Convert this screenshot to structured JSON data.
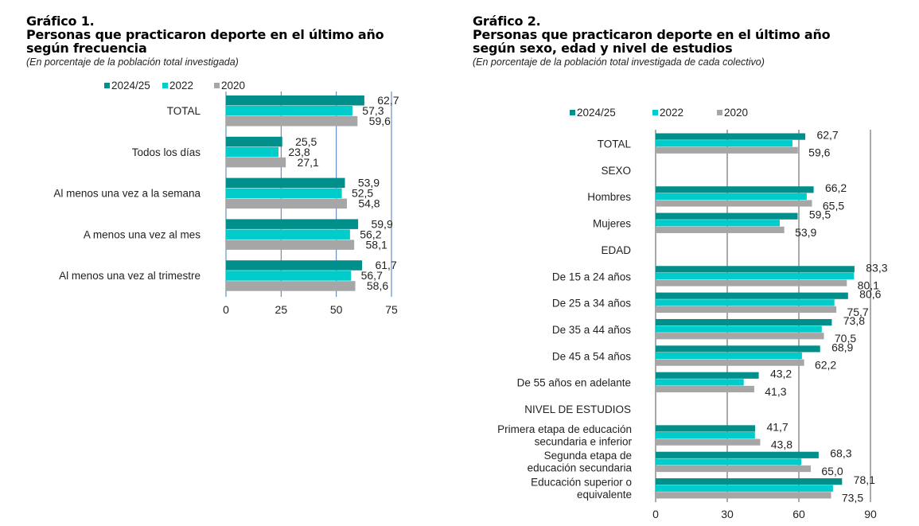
{
  "colors": {
    "s2024": "#008f8a",
    "s2022": "#00cccc",
    "s2020": "#a6a6a6",
    "grid1": "#4a78c2",
    "grid2": "#555555"
  },
  "chart_data": [
    {
      "type": "bar",
      "orientation": "horizontal",
      "title_number": "Gráfico 1.",
      "title": "Personas que practicaron deporte en el último año según frecuencia",
      "title_lines": [
        "Personas que practicaron deporte en el último año",
        "según frecuencia"
      ],
      "subtitle": "(En porcentaje de la población total investigada)",
      "xlabel": "",
      "ylabel": "",
      "xlim": [
        0,
        75
      ],
      "ticks": [
        0,
        25,
        50,
        75
      ],
      "grid": true,
      "legend_position": "top",
      "categories": [
        "TOTAL",
        "Todos los días",
        "Al menos una vez a la semana",
        "A menos una vez al mes",
        "Al menos una vez al trimestre"
      ],
      "series": [
        {
          "name": "2024/25",
          "values": [
            62.7,
            25.5,
            53.9,
            59.9,
            61.7
          ],
          "labels": [
            "62,7",
            "25,5",
            "53,9",
            "59,9",
            "61,7"
          ]
        },
        {
          "name": "2022",
          "values": [
            57.3,
            23.8,
            52.5,
            56.2,
            56.7
          ],
          "labels": [
            "57,3",
            "23,8",
            "52,5",
            "56,2",
            "56,7"
          ]
        },
        {
          "name": "2020",
          "values": [
            59.6,
            27.1,
            54.8,
            58.1,
            58.6
          ],
          "labels": [
            "59,6",
            "27,1",
            "54,8",
            "58,1",
            "58,6"
          ]
        }
      ]
    },
    {
      "type": "bar",
      "orientation": "horizontal",
      "title_number": "Gráfico 2.",
      "title": "Personas que practicaron deporte en el último año según sexo, edad y nivel de estudios",
      "title_lines": [
        "Personas que practicaron deporte en el último año",
        "según sexo, edad y nivel de estudios"
      ],
      "subtitle": "(En porcentaje de la población total investigada de cada colectivo)",
      "xlabel": "",
      "ylabel": "",
      "xlim": [
        0,
        90
      ],
      "ticks": [
        0,
        30,
        60,
        90
      ],
      "grid": true,
      "legend_position": "top",
      "categories": [
        {
          "label": [
            "TOTAL"
          ],
          "header": false
        },
        {
          "label": [
            "SEXO"
          ],
          "header": true
        },
        {
          "label": [
            "Hombres"
          ],
          "header": false
        },
        {
          "label": [
            "Mujeres"
          ],
          "header": false
        },
        {
          "label": [
            "EDAD"
          ],
          "header": true
        },
        {
          "label": [
            "De 15 a 24 años"
          ],
          "header": false
        },
        {
          "label": [
            "De 25 a 34 años"
          ],
          "header": false
        },
        {
          "label": [
            "De 35 a 44 años"
          ],
          "header": false
        },
        {
          "label": [
            "De 45 a 54 años"
          ],
          "header": false
        },
        {
          "label": [
            "De 55 años en adelante"
          ],
          "header": false
        },
        {
          "label": [
            "NIVEL DE ESTUDIOS"
          ],
          "header": true
        },
        {
          "label": [
            "Primera etapa de educación",
            "secundaria e inferior"
          ],
          "header": false
        },
        {
          "label": [
            "Segunda etapa de",
            "educación secundaria"
          ],
          "header": false
        },
        {
          "label": [
            "Educación superior o",
            "equivalente"
          ],
          "header": false
        }
      ],
      "series": [
        {
          "name": "2024/25",
          "values": [
            62.7,
            null,
            66.2,
            59.5,
            null,
            83.3,
            80.6,
            73.8,
            68.9,
            43.2,
            null,
            41.7,
            68.3,
            78.1
          ],
          "labels": [
            "62,7",
            null,
            "66,2",
            "59,5",
            null,
            "83,3",
            "80,6",
            "73,8",
            "68,9",
            "43,2",
            null,
            "41,7",
            "68,3",
            "78,1"
          ]
        },
        {
          "name": "2022",
          "values": [
            57.3,
            null,
            63.3,
            52.0,
            null,
            83.1,
            74.9,
            69.6,
            61.3,
            36.9,
            null,
            41.6,
            61.0,
            74.3
          ],
          "labels": [
            null,
            null,
            null,
            null,
            null,
            null,
            null,
            null,
            null,
            null,
            null,
            null,
            null,
            null
          ]
        },
        {
          "name": "2020",
          "values": [
            59.6,
            null,
            65.5,
            53.9,
            null,
            80.1,
            75.7,
            70.5,
            62.2,
            41.3,
            null,
            43.8,
            65.0,
            73.5
          ],
          "labels": [
            "59,6",
            null,
            "65,5",
            "53,9",
            null,
            "80,1",
            "75,7",
            "70,5",
            "62,2",
            "41,3",
            null,
            "43,8",
            "65,0",
            "73,5"
          ]
        }
      ]
    }
  ]
}
